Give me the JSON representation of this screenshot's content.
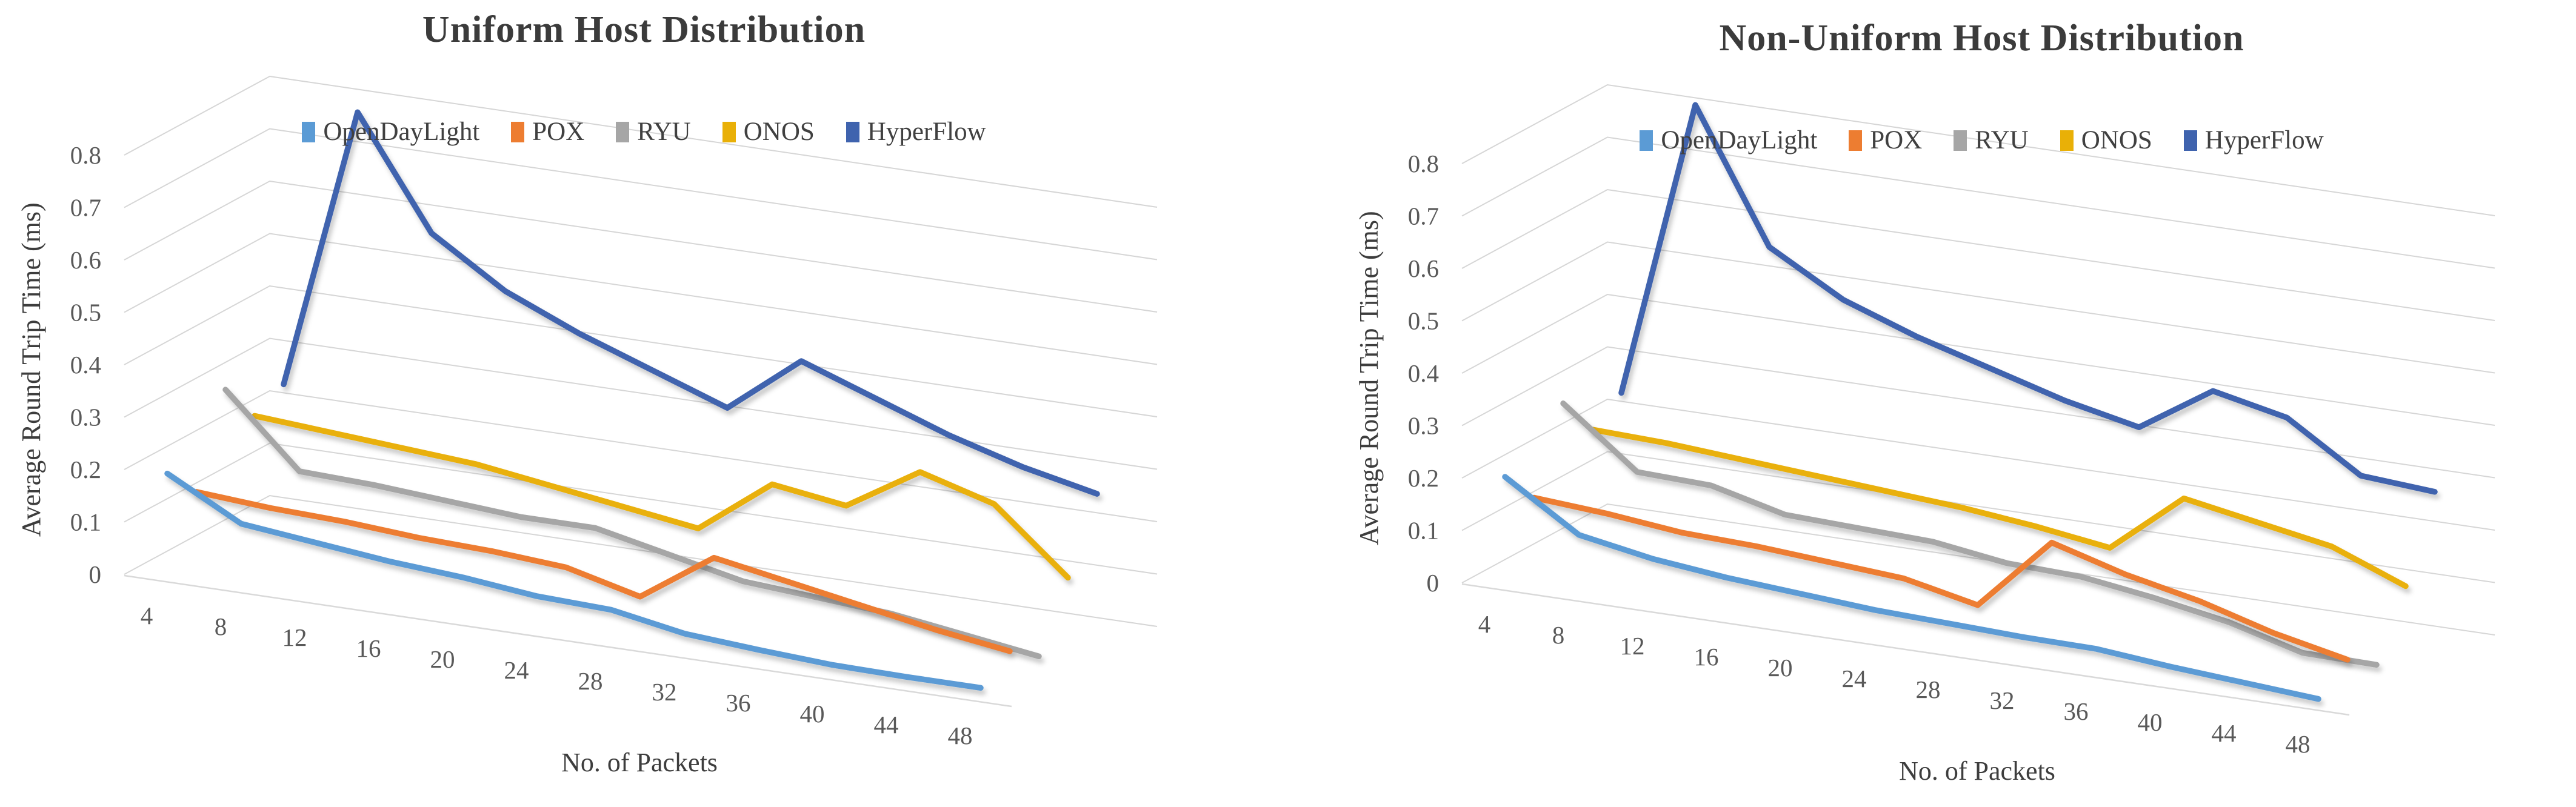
{
  "figure": {
    "background": "#ffffff",
    "text_color": "#3b3b3b",
    "tick_color": "#595959",
    "gridline_color": "#d6d6d6"
  },
  "chart_data": [
    {
      "type": "line",
      "projection": "3d",
      "title": "Uniform Host Distribution",
      "xlabel": "No. of Packets",
      "ylabel": "Average Round Trip Time (ms)",
      "categories": [
        4,
        8,
        12,
        16,
        20,
        24,
        28,
        32,
        36,
        40,
        44,
        48
      ],
      "ylim": [
        0,
        0.8
      ],
      "ytick_step": 0.1,
      "grid": true,
      "legend_position": "top",
      "series": [
        {
          "name": "OpenDayLight",
          "color": "#5B9BD5",
          "values": [
            0.19,
            0.115,
            0.1,
            0.085,
            0.075,
            0.06,
            0.055,
            0.03,
            0.02,
            0.012,
            0.01,
            0.01
          ]
        },
        {
          "name": "POX",
          "color": "#ED7D31",
          "values": [
            0.125,
            0.115,
            0.11,
            0.1,
            0.095,
            0.085,
            0.05,
            0.145,
            0.12,
            0.095,
            0.07,
            0.05
          ]
        },
        {
          "name": "RYU",
          "color": "#A6A6A6",
          "values": [
            0.29,
            0.155,
            0.15,
            0.14,
            0.13,
            0.13,
            0.1,
            0.07,
            0.06,
            0.05,
            0.03,
            0.01
          ]
        },
        {
          "name": "ONOS",
          "color": "#E9B007",
          "values": [
            0.21,
            0.2,
            0.19,
            0.18,
            0.16,
            0.14,
            0.12,
            0.225,
            0.205,
            0.29,
            0.25,
            0.13
          ]
        },
        {
          "name": "HyperFlow",
          "color": "#3F63AE",
          "values": [
            0.24,
            0.78,
            0.57,
            0.48,
            0.42,
            0.37,
            0.32,
            0.43,
            0.38,
            0.33,
            0.29,
            0.26
          ]
        }
      ]
    },
    {
      "type": "line",
      "projection": "3d",
      "title": "Non-Uniform Host Distribution",
      "xlabel": "No. of Packets",
      "ylabel": "Average Round Trip Time (ms)",
      "categories": [
        4,
        8,
        12,
        16,
        20,
        24,
        28,
        32,
        36,
        40,
        44,
        48
      ],
      "ylim": [
        0,
        0.8
      ],
      "ytick_step": 0.1,
      "grid": true,
      "legend_position": "top",
      "series": [
        {
          "name": "OpenDayLight",
          "color": "#5B9BD5",
          "values": [
            0.2,
            0.11,
            0.085,
            0.07,
            0.06,
            0.05,
            0.045,
            0.04,
            0.038,
            0.025,
            0.015,
            0.005
          ]
        },
        {
          "name": "POX",
          "color": "#ED7D31",
          "values": [
            0.13,
            0.12,
            0.105,
            0.1,
            0.09,
            0.08,
            0.05,
            0.19,
            0.15,
            0.12,
            0.08,
            0.05
          ]
        },
        {
          "name": "RYU",
          "color": "#A6A6A6",
          "values": [
            0.28,
            0.17,
            0.165,
            0.13,
            0.125,
            0.12,
            0.1,
            0.095,
            0.075,
            0.05,
            0.012,
            0.01
          ]
        },
        {
          "name": "ONOS",
          "color": "#E9B007",
          "values": [
            0.2,
            0.195,
            0.185,
            0.175,
            0.165,
            0.155,
            0.14,
            0.12,
            0.235,
            0.21,
            0.185,
            0.13
          ]
        },
        {
          "name": "HyperFlow",
          "color": "#3F63AE",
          "values": [
            0.24,
            0.81,
            0.56,
            0.48,
            0.43,
            0.39,
            0.35,
            0.32,
            0.41,
            0.38,
            0.29,
            0.28
          ]
        }
      ]
    }
  ]
}
